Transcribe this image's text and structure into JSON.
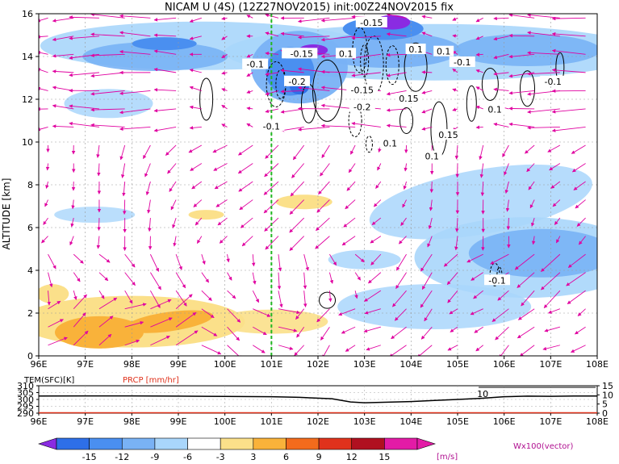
{
  "title": "NICAM U (4S) (12Z27NOV2015) init:00Z24NOV2015 fix",
  "chart_data": [
    {
      "type": "heatmap",
      "title": "NICAM U (4S) (12Z27NOV2015) init:00Z24NOV2015 fix",
      "ylabel": "ALTITUDE [km]",
      "x_ticks": [
        "96E",
        "97E",
        "98E",
        "99E",
        "100E",
        "101E",
        "102E",
        "103E",
        "104E",
        "105E",
        "106E",
        "107E",
        "108E"
      ],
      "y_ticks": [
        "0",
        "2",
        "4",
        "6",
        "8",
        "10",
        "12",
        "14",
        "16"
      ],
      "xlim": [
        96,
        108
      ],
      "ylim": [
        0,
        16
      ],
      "marker_lon": 101,
      "contour_labels": [
        {
          "text": "-0.15",
          "lon": 103.15,
          "alt": 15.55
        },
        {
          "text": "-0.1",
          "lon": 101.5,
          "alt": 14.1
        },
        {
          "text": "-0.15",
          "lon": 101.65,
          "alt": 14.1
        },
        {
          "text": "0.1",
          "lon": 102.6,
          "alt": 14.1
        },
        {
          "text": "0.1",
          "lon": 104.1,
          "alt": 14.3
        },
        {
          "text": "0.1",
          "lon": 104.7,
          "alt": 14.2
        },
        {
          "text": "-0.1",
          "lon": 100.65,
          "alt": 13.6
        },
        {
          "text": "-0.1",
          "lon": 105.1,
          "alt": 13.7
        },
        {
          "text": "-0.2",
          "lon": 101.55,
          "alt": 12.8
        },
        {
          "text": "-0.1",
          "lon": 107.05,
          "alt": 12.8
        },
        {
          "text": "-0.15",
          "lon": 102.95,
          "alt": 12.4
        },
        {
          "text": "-0.2",
          "lon": 102.95,
          "alt": 11.6
        },
        {
          "text": "0.15",
          "lon": 103.95,
          "alt": 12.0
        },
        {
          "text": "0.1",
          "lon": 105.8,
          "alt": 11.5
        },
        {
          "text": "0.15",
          "lon": 104.8,
          "alt": 10.3
        },
        {
          "text": "-0.1",
          "lon": 101.0,
          "alt": 10.7
        },
        {
          "text": "0.1",
          "lon": 103.55,
          "alt": 9.9
        },
        {
          "text": "0.1",
          "lon": 104.45,
          "alt": 9.3
        },
        {
          "text": "-0.1",
          "lon": 105.85,
          "alt": 3.5
        }
      ],
      "colorbar": {
        "ticks": [
          "-15",
          "-12",
          "-9",
          "-6",
          "-3",
          "3",
          "6",
          "9",
          "12",
          "15"
        ],
        "colors": [
          "#8a2be2",
          "#2e6fe8",
          "#4a8ff0",
          "#79b2f5",
          "#a9d6fb",
          "#ffffff",
          "#fbe08a",
          "#f9b23a",
          "#f36b1c",
          "#e0321c",
          "#b01020",
          "#e31ba6"
        ],
        "unit": "[m/s]"
      },
      "vector_label": "Wx100(vector)"
    },
    {
      "type": "line",
      "title": "TEM(SFC)[K]",
      "title2": "PRCP [mm/hr]",
      "x_ticks": [
        "96E",
        "97E",
        "98E",
        "99E",
        "100E",
        "101E",
        "102E",
        "103E",
        "104E",
        "105E",
        "106E",
        "107E",
        "108E"
      ],
      "xlim": [
        96,
        108
      ],
      "left_ticks": [
        "310",
        "305",
        "300",
        "295",
        "290"
      ],
      "right_ticks": [
        "15",
        "10",
        "5",
        "0"
      ],
      "series": [
        {
          "name": "TEM(SFC)[K]",
          "x": [
            96,
            97,
            98,
            99,
            100,
            101,
            101.6,
            102.3,
            102.7,
            103.0,
            103.5,
            104.0,
            104.5,
            105.0,
            105.5,
            106.0,
            106.5,
            107.0,
            107.5,
            108
          ],
          "values": [
            302.5,
            302.6,
            302.6,
            302.4,
            302.2,
            302.0,
            301.5,
            300.5,
            298.2,
            297.6,
            298.0,
            298.5,
            299.3,
            300.0,
            300.8,
            302.0,
            302.4,
            302.3,
            302.5,
            302.5
          ]
        },
        {
          "name": "PRCP [mm/hr]",
          "x": [
            96,
            108
          ],
          "values": [
            0,
            0
          ]
        }
      ],
      "annotation": {
        "text": "10",
        "lon": 105.8
      }
    }
  ]
}
